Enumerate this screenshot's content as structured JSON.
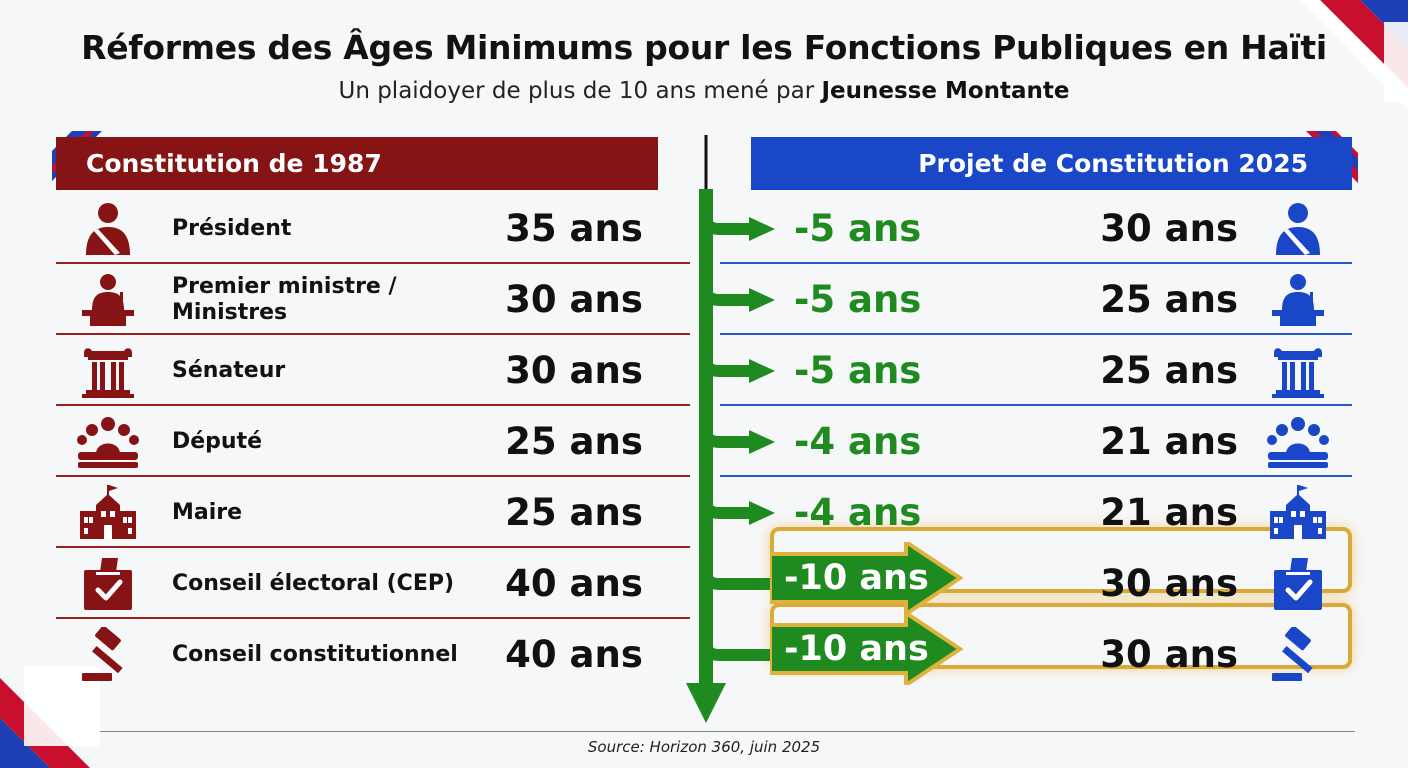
{
  "title": "Réformes des Âges Minimums pour les Fonctions Publiques en Haïti",
  "subtitle_prefix": "Un plaidoyer de plus de 10 ans mené par ",
  "subtitle_org": "Jeunesse Montante",
  "left_header": "Constitution de 1987",
  "right_header": "Projet de Constitution 2025",
  "colors": {
    "old": "#861414",
    "new": "#1947c8",
    "change": "#1f8a1f",
    "highlight": "#d9a93a"
  },
  "rows": [
    {
      "icon": "president-icon",
      "role_line1": "Président",
      "role_line2": "",
      "old_age": "35 ans",
      "delta": "-5 ans",
      "new_age": "30 ans",
      "highlight": false
    },
    {
      "icon": "podium-icon",
      "role_line1": "Premier ministre /",
      "role_line2": "Ministres",
      "old_age": "30 ans",
      "delta": "-5 ans",
      "new_age": "25 ans",
      "highlight": false
    },
    {
      "icon": "column-icon",
      "role_line1": "Sénateur",
      "role_line2": "",
      "old_age": "30 ans",
      "delta": "-5 ans",
      "new_age": "25 ans",
      "highlight": false
    },
    {
      "icon": "assembly-icon",
      "role_line1": "Député",
      "role_line2": "",
      "old_age": "25 ans",
      "delta": "-4 ans",
      "new_age": "21 ans",
      "highlight": false
    },
    {
      "icon": "town-hall-icon",
      "role_line1": "Maire",
      "role_line2": "",
      "old_age": "25 ans",
      "delta": "-4 ans",
      "new_age": "21 ans",
      "highlight": false
    },
    {
      "icon": "ballot-box-icon",
      "role_line1": "Conseil électoral (CEP)",
      "role_line2": "",
      "old_age": "40 ans",
      "delta": "-10 ans",
      "new_age": "30 ans",
      "highlight": true
    },
    {
      "icon": "gavel-icon",
      "role_line1": "Conseil constitutionnel",
      "role_line2": "",
      "old_age": "40 ans",
      "delta": "-10 ans",
      "new_age": "30 ans",
      "highlight": true
    }
  ],
  "source": "Source: Horizon 360, juin 2025"
}
